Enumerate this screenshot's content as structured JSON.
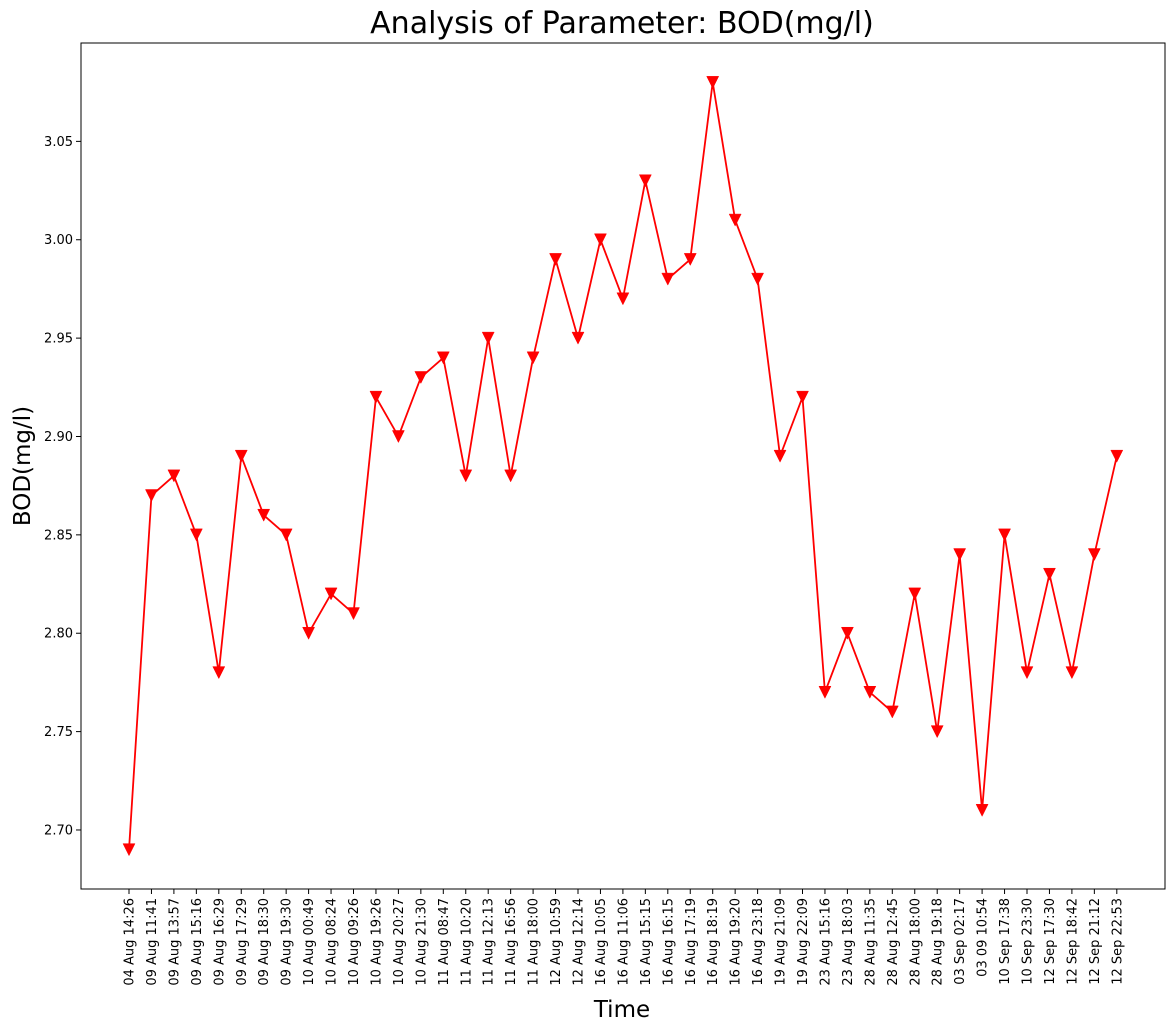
{
  "chart_data": {
    "type": "line",
    "title": "Analysis of Parameter: BOD(mg/l)",
    "xlabel": "Time",
    "ylabel": "BOD(mg/l)",
    "ylim": [
      2.67,
      3.1
    ],
    "y_ticks": [
      "2.70",
      "2.75",
      "2.80",
      "2.85",
      "2.90",
      "2.95",
      "3.00",
      "3.05"
    ],
    "grid": false,
    "line_color": "#ff0000",
    "marker": "triangle-down",
    "categories": [
      "04 Aug 14:26",
      "09 Aug 11:41",
      "09 Aug 13:57",
      "09 Aug 15:16",
      "09 Aug 16:29",
      "09 Aug 17:29",
      "09 Aug 18:30",
      "09 Aug 19:30",
      "10 Aug 00:49",
      "10 Aug 08:24",
      "10 Aug 09:26",
      "10 Aug 19:26",
      "10 Aug 20:27",
      "10 Aug 21:30",
      "11 Aug 08:47",
      "11 Aug 10:20",
      "11 Aug 12:13",
      "11 Aug 16:56",
      "11 Aug 18:00",
      "12 Aug 10:59",
      "12 Aug 12:14",
      "16 Aug 10:05",
      "16 Aug 11:06",
      "16 Aug 15:15",
      "16 Aug 16:15",
      "16 Aug 17:19",
      "16 Aug 18:19",
      "16 Aug 19:20",
      "16 Aug 23:18",
      "19 Aug 21:09",
      "19 Aug 22:09",
      "23 Aug 15:16",
      "23 Aug 18:03",
      "28 Aug 11:35",
      "28 Aug 12:45",
      "28 Aug 18:00",
      "28 Aug 19:18",
      "03 Sep 02:17",
      "03 09 10:54",
      "10 Sep 17:38",
      "10 Sep 23:30",
      "12 Sep 17:30",
      "12 Sep 18:42",
      "12 Sep 21:12",
      "12 Sep 22:53"
    ],
    "values": [
      2.69,
      2.87,
      2.88,
      2.85,
      2.78,
      2.89,
      2.86,
      2.85,
      2.8,
      2.82,
      2.81,
      2.92,
      2.9,
      2.93,
      2.94,
      2.88,
      2.95,
      2.88,
      2.94,
      2.99,
      2.95,
      3.0,
      2.97,
      3.03,
      2.98,
      2.99,
      3.08,
      3.01,
      2.98,
      2.89,
      2.92,
      2.77,
      2.8,
      2.77,
      2.76,
      2.82,
      2.75,
      2.84,
      2.71,
      2.85,
      2.78,
      2.83,
      2.78,
      2.84,
      2.89
    ]
  }
}
